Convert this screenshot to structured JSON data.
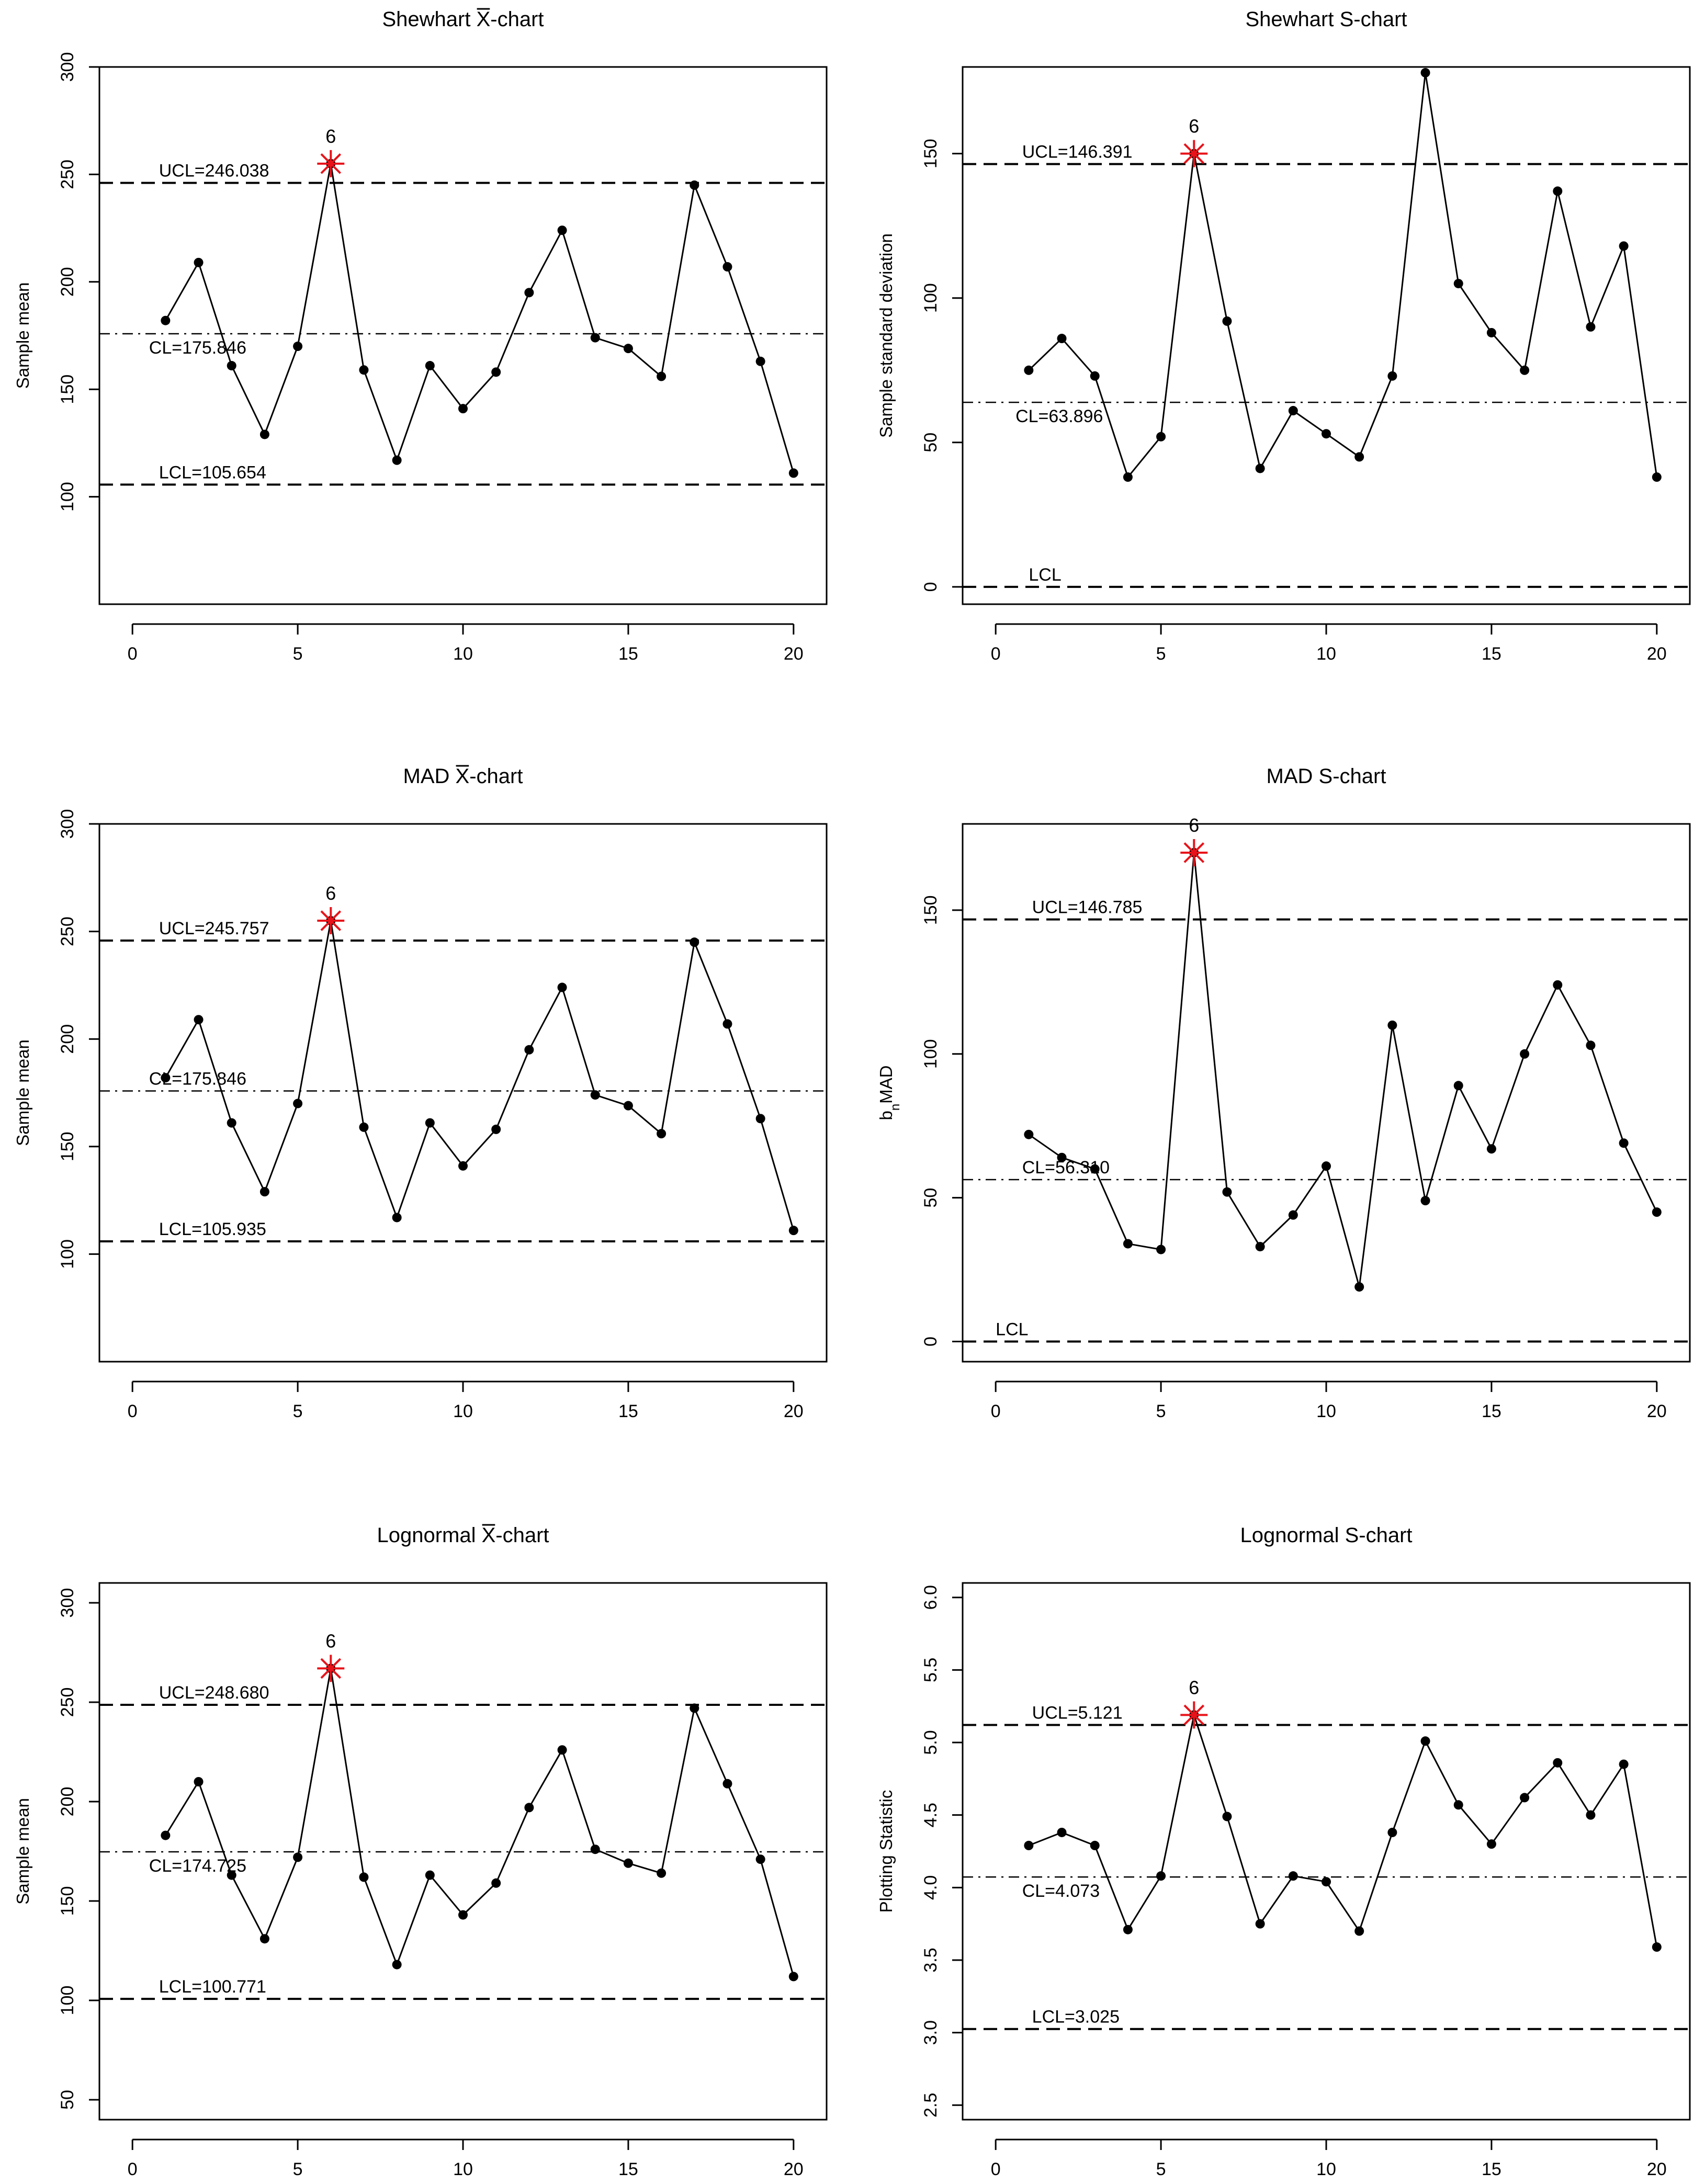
{
  "chart_data": [
    {
      "type": "line",
      "title": "Shewhart X̅-chart",
      "title_parts": {
        "prefix": "Shewhart",
        "xbar": "X",
        "suffix": "-chart"
      },
      "xlabel": "",
      "ylabel": "Sample mean",
      "xlim": [
        -1,
        21
      ],
      "ylim": [
        50,
        300
      ],
      "xticks": [
        0,
        5,
        10,
        15,
        20
      ],
      "yticks": [
        100,
        150,
        200,
        250,
        300
      ],
      "x": [
        1,
        2,
        3,
        4,
        5,
        6,
        7,
        8,
        9,
        10,
        11,
        12,
        13,
        14,
        15,
        16,
        17,
        18,
        19,
        20
      ],
      "values": [
        182,
        209,
        161,
        129,
        170,
        255,
        159,
        117,
        161,
        141,
        158,
        195,
        224,
        174,
        169,
        156,
        245,
        207,
        163,
        111
      ],
      "limits": [
        {
          "name": "UCL",
          "value": 246.038,
          "label": "UCL=246.038",
          "style": "dashed"
        },
        {
          "name": "CL",
          "value": 175.846,
          "label": "CL=175.846",
          "style": "dotdash"
        },
        {
          "name": "LCL",
          "value": 105.654,
          "label": "LCL=105.654",
          "style": "dashed"
        }
      ],
      "out_of_control": [
        {
          "x": 6,
          "label": "6"
        }
      ]
    },
    {
      "type": "line",
      "title": "Shewhart S-chart",
      "title_parts": {
        "prefix": "Shewhart",
        "xbar": "",
        "suffix": "S-chart"
      },
      "xlabel": "",
      "ylabel": "Sample standard deviation",
      "xlim": [
        -1,
        21
      ],
      "ylim": [
        -6,
        180
      ],
      "xticks": [
        0,
        5,
        10,
        15,
        20
      ],
      "yticks": [
        0,
        50,
        100,
        150
      ],
      "x": [
        1,
        2,
        3,
        4,
        5,
        6,
        7,
        8,
        9,
        10,
        11,
        12,
        13,
        14,
        15,
        16,
        17,
        18,
        19,
        20
      ],
      "values": [
        75,
        86,
        73,
        38,
        52,
        150,
        92,
        41,
        61,
        53,
        45,
        73,
        178,
        105,
        88,
        75,
        137,
        90,
        118,
        38
      ],
      "limits": [
        {
          "name": "UCL",
          "value": 146.391,
          "label": "UCL=146.391",
          "style": "dashed"
        },
        {
          "name": "CL",
          "value": 63.896,
          "label": "CL=63.896",
          "style": "dotdash"
        },
        {
          "name": "LCL",
          "value": 0,
          "label": "LCL",
          "style": "dashed"
        }
      ],
      "out_of_control": [
        {
          "x": 6,
          "label": "6"
        }
      ]
    },
    {
      "type": "line",
      "title": "MAD X̅-chart",
      "title_parts": {
        "prefix": "MAD",
        "xbar": "X",
        "suffix": "-chart"
      },
      "xlabel": "",
      "ylabel": "Sample mean",
      "xlim": [
        -1,
        21
      ],
      "ylim": [
        50,
        300
      ],
      "xticks": [
        0,
        5,
        10,
        15,
        20
      ],
      "yticks": [
        100,
        150,
        200,
        250,
        300
      ],
      "x": [
        1,
        2,
        3,
        4,
        5,
        6,
        7,
        8,
        9,
        10,
        11,
        12,
        13,
        14,
        15,
        16,
        17,
        18,
        19,
        20
      ],
      "values": [
        182,
        209,
        161,
        129,
        170,
        255,
        159,
        117,
        161,
        141,
        158,
        195,
        224,
        174,
        169,
        156,
        245,
        207,
        163,
        111
      ],
      "limits": [
        {
          "name": "UCL",
          "value": 245.757,
          "label": "UCL=245.757",
          "style": "dashed"
        },
        {
          "name": "CL",
          "value": 175.846,
          "label": "CL=175.846",
          "style": "dotdash"
        },
        {
          "name": "LCL",
          "value": 105.935,
          "label": "LCL=105.935",
          "style": "dashed"
        }
      ],
      "out_of_control": [
        {
          "x": 6,
          "label": "6"
        }
      ]
    },
    {
      "type": "line",
      "title": "MAD S-chart",
      "title_parts": {
        "prefix": "MAD",
        "xbar": "",
        "suffix": "S-chart"
      },
      "xlabel": "",
      "ylabel": "bnMAD",
      "ylabel_parts": {
        "main": "b",
        "sub": "n",
        "rest": "MAD"
      },
      "xlim": [
        -1,
        21
      ],
      "ylim": [
        -7,
        180
      ],
      "xticks": [
        0,
        5,
        10,
        15,
        20
      ],
      "yticks": [
        0,
        50,
        100,
        150
      ],
      "x": [
        1,
        2,
        3,
        4,
        5,
        6,
        7,
        8,
        9,
        10,
        11,
        12,
        13,
        14,
        15,
        16,
        17,
        18,
        19,
        20
      ],
      "values": [
        72,
        64,
        60,
        34,
        32,
        170,
        52,
        33,
        44,
        61,
        19,
        110,
        49,
        89,
        67,
        100,
        124,
        103,
        69,
        45
      ],
      "limits": [
        {
          "name": "UCL",
          "value": 146.785,
          "label": "UCL=146.785",
          "style": "dashed"
        },
        {
          "name": "CL",
          "value": 56.31,
          "label": "CL=56.310",
          "style": "dotdash"
        },
        {
          "name": "LCL",
          "value": 0,
          "label": "LCL",
          "style": "dashed"
        }
      ],
      "out_of_control": [
        {
          "x": 6,
          "label": "6"
        }
      ]
    },
    {
      "type": "line",
      "title": "Lognormal X̅-chart",
      "title_parts": {
        "prefix": "Lognormal",
        "xbar": "X",
        "suffix": "-chart"
      },
      "xlabel": "",
      "ylabel": "Sample mean",
      "xlim": [
        -1,
        21
      ],
      "ylim": [
        40,
        310
      ],
      "xticks": [
        0,
        5,
        10,
        15,
        20
      ],
      "yticks": [
        50,
        100,
        150,
        200,
        250,
        300
      ],
      "x": [
        1,
        2,
        3,
        4,
        5,
        6,
        7,
        8,
        9,
        10,
        11,
        12,
        13,
        14,
        15,
        16,
        17,
        18,
        19,
        20
      ],
      "values": [
        183,
        210,
        163,
        131,
        172,
        267,
        162,
        118,
        163,
        143,
        159,
        197,
        226,
        176,
        169,
        164,
        247,
        209,
        171,
        112
      ],
      "limits": [
        {
          "name": "UCL",
          "value": 248.68,
          "label": "UCL=248.680",
          "style": "dashed"
        },
        {
          "name": "CL",
          "value": 174.725,
          "label": "CL=174.725",
          "style": "dotdash"
        },
        {
          "name": "LCL",
          "value": 100.771,
          "label": "LCL=100.771",
          "style": "dashed"
        }
      ],
      "out_of_control": [
        {
          "x": 6,
          "label": "6"
        }
      ]
    },
    {
      "type": "line",
      "title": "Lognormal S-chart",
      "title_parts": {
        "prefix": "Lognormal",
        "xbar": "",
        "suffix": "S-chart"
      },
      "xlabel": "",
      "ylabel": "Plotting Statistic",
      "xlim": [
        -1,
        21
      ],
      "ylim": [
        2.4,
        6.1
      ],
      "xticks": [
        0,
        5,
        10,
        15,
        20
      ],
      "yticks": [
        2.5,
        3.0,
        3.5,
        4.0,
        4.5,
        5.0,
        5.5,
        6.0
      ],
      "ytick_labels": [
        "2.5",
        "3.0",
        "3.5",
        "4.0",
        "4.5",
        "5.0",
        "5.5",
        "6.0"
      ],
      "x": [
        1,
        2,
        3,
        4,
        5,
        6,
        7,
        8,
        9,
        10,
        11,
        12,
        13,
        14,
        15,
        16,
        17,
        18,
        19,
        20
      ],
      "values": [
        4.29,
        4.38,
        4.29,
        3.71,
        4.08,
        5.19,
        4.49,
        3.75,
        4.08,
        4.04,
        3.7,
        4.38,
        5.01,
        4.57,
        4.3,
        4.62,
        4.86,
        4.5,
        4.85,
        3.59
      ],
      "limits": [
        {
          "name": "UCL",
          "value": 5.121,
          "label": "UCL=5.121",
          "style": "dashed"
        },
        {
          "name": "CL",
          "value": 4.073,
          "label": "CL=4.073",
          "style": "dotdash"
        },
        {
          "name": "LCL",
          "value": 3.025,
          "label": "LCL=3.025",
          "style": "dashed"
        }
      ],
      "out_of_control": [
        {
          "x": 6,
          "label": "6"
        }
      ]
    }
  ],
  "colors": {
    "line": "#000000",
    "point": "#000000",
    "out_of_control": "#e8131a",
    "background": "#ffffff"
  }
}
